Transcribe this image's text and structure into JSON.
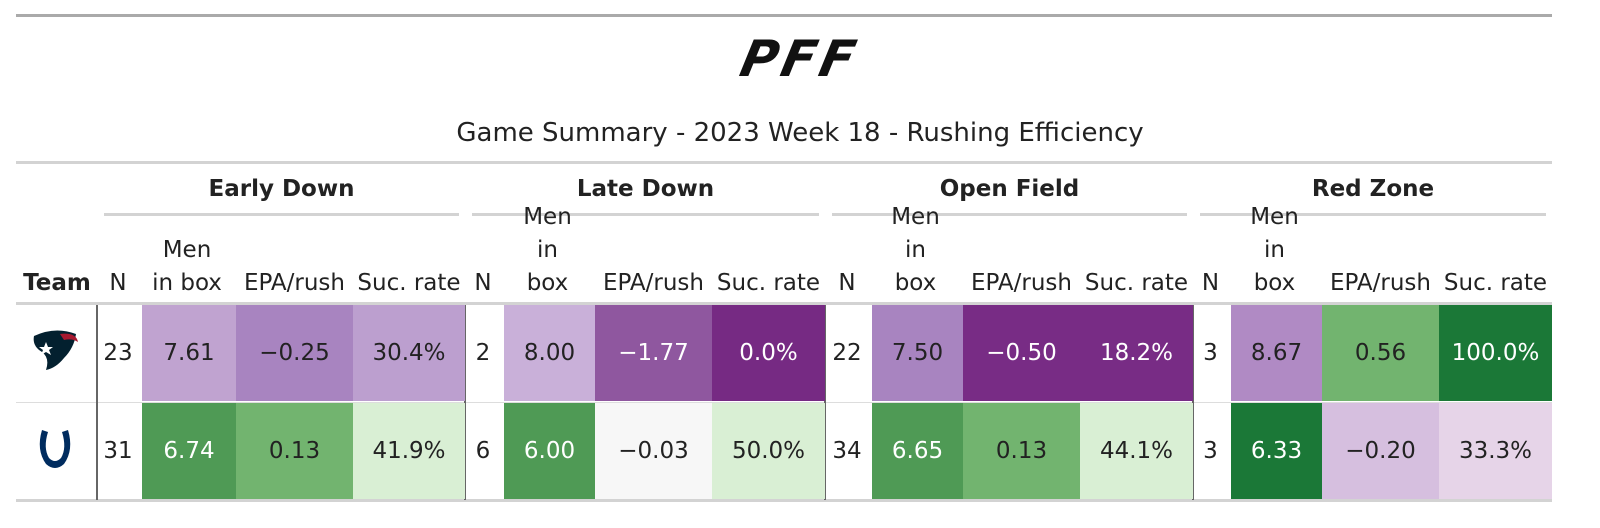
{
  "logo": "PFF",
  "title": "Game Summary - 2023 Week 18 - Rushing Efficiency",
  "table": {
    "groups": [
      "Early Down",
      "Late Down",
      "Open Field",
      "Red Zone"
    ],
    "team_header": "Team",
    "columns": [
      "N",
      "Men in box",
      "EPA/rush",
      "Suc. rate"
    ],
    "rows": [
      {
        "values": [
          "23",
          "7.61",
          "−0.25",
          "30.4%",
          "2",
          "8.00",
          "−1.77",
          "0.0%",
          "22",
          "7.50",
          "−0.50",
          "18.2%",
          "3",
          "8.67",
          "0.56",
          "100.0%"
        ],
        "colors": [
          "#ffffff",
          "#c0a3d0",
          "#a884c0",
          "#bc9fcf",
          "#ffffff",
          "#c9b0d9",
          "#8f579f",
          "#762a83",
          "#ffffff",
          "#a884c0",
          "#782c85",
          "#782c85",
          "#ffffff",
          "#b08ac4",
          "#72b46f",
          "#1b7837"
        ]
      },
      {
        "values": [
          "31",
          "6.74",
          "0.13",
          "41.9%",
          "6",
          "6.00",
          "−0.03",
          "50.0%",
          "34",
          "6.65",
          "0.13",
          "44.1%",
          "3",
          "6.33",
          "−0.20",
          "33.3%"
        ],
        "colors": [
          "#ffffff",
          "#4f9a55",
          "#72b46f",
          "#d9efd4",
          "#ffffff",
          "#4f9a55",
          "#f7f7f7",
          "#d9efd4",
          "#ffffff",
          "#4f9a55",
          "#72b46f",
          "#d9efd4",
          "#ffffff",
          "#1b7837",
          "#d6bfdf",
          "#e6d4e8"
        ]
      }
    ]
  }
}
